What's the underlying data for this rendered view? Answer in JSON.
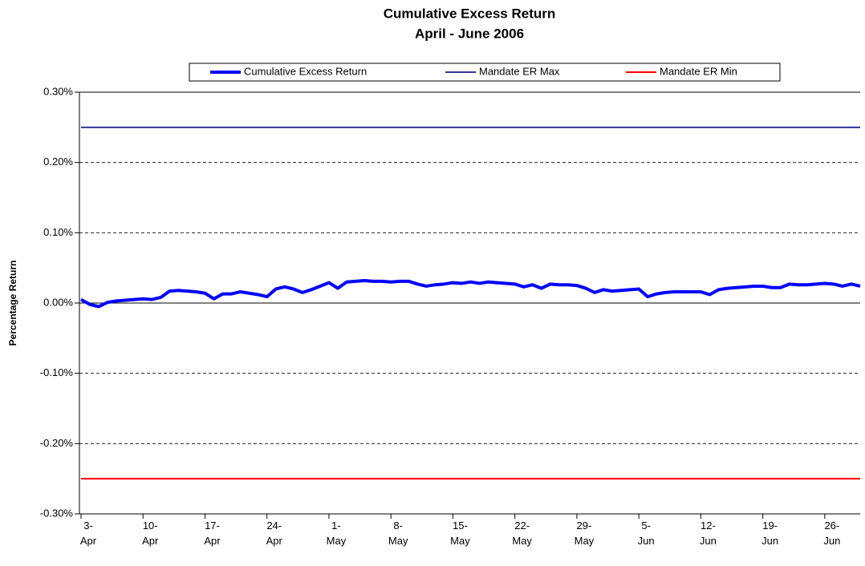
{
  "chart_data": {
    "type": "line",
    "title": "Cumulative Excess Return",
    "subtitle": "April - June 2006",
    "ylabel": "Percentage Return",
    "categories": [
      "3-Apr",
      null,
      null,
      null,
      null,
      null,
      null,
      "10-Apr",
      null,
      null,
      null,
      null,
      null,
      null,
      "17-Apr",
      null,
      null,
      null,
      null,
      null,
      null,
      "24-Apr",
      null,
      null,
      null,
      null,
      null,
      null,
      "1-May",
      null,
      null,
      null,
      null,
      null,
      null,
      "8-May",
      null,
      null,
      null,
      null,
      null,
      null,
      "15-May",
      null,
      null,
      null,
      null,
      null,
      null,
      "22-May",
      null,
      null,
      null,
      null,
      null,
      null,
      "29-May",
      null,
      null,
      null,
      null,
      null,
      null,
      "5-Jun",
      null,
      null,
      null,
      null,
      null,
      null,
      "12-Jun",
      null,
      null,
      null,
      null,
      null,
      null,
      "19-Jun",
      null,
      null,
      null,
      null,
      null,
      null,
      "26-Jun",
      null,
      null,
      null,
      null
    ],
    "series": [
      {
        "name": "Cumulative Excess Return",
        "color": "#0000ff",
        "width": 4,
        "values": [
          0.005,
          -0.002,
          -0.005,
          0.001,
          0.003,
          0.004,
          0.005,
          0.006,
          0.005,
          0.008,
          0.017,
          0.018,
          0.017,
          0.016,
          0.014,
          0.006,
          0.013,
          0.013,
          0.016,
          0.014,
          0.012,
          0.009,
          0.02,
          0.023,
          0.02,
          0.015,
          0.019,
          0.024,
          0.029,
          0.021,
          0.03,
          0.031,
          0.032,
          0.031,
          0.031,
          0.03,
          0.031,
          0.031,
          0.027,
          0.024,
          0.026,
          0.027,
          0.029,
          0.028,
          0.03,
          0.028,
          0.03,
          0.029,
          0.028,
          0.027,
          0.023,
          0.026,
          0.021,
          0.027,
          0.026,
          0.026,
          0.025,
          0.021,
          0.015,
          0.019,
          0.017,
          0.018,
          0.019,
          0.02,
          0.009,
          0.013,
          0.015,
          0.016,
          0.016,
          0.016,
          0.016,
          0.012,
          0.019,
          0.021,
          0.022,
          0.023,
          0.024,
          0.024,
          0.022,
          0.022,
          0.027,
          0.026,
          0.026,
          0.027,
          0.028,
          0.027,
          0.024,
          0.027,
          0.024
        ]
      },
      {
        "name": "Mandate ER Max",
        "color": "#333399",
        "width": 2,
        "values": [
          0.25,
          0.25,
          0.25,
          0.25,
          0.25,
          0.25,
          0.25,
          0.25,
          0.25,
          0.25,
          0.25,
          0.25,
          0.25,
          0.25,
          0.25,
          0.25,
          0.25,
          0.25,
          0.25,
          0.25,
          0.25,
          0.25,
          0.25,
          0.25,
          0.25,
          0.25,
          0.25,
          0.25,
          0.25,
          0.25,
          0.25,
          0.25,
          0.25,
          0.25,
          0.25,
          0.25,
          0.25,
          0.25,
          0.25,
          0.25,
          0.25,
          0.25,
          0.25,
          0.25,
          0.25,
          0.25,
          0.25,
          0.25,
          0.25,
          0.25,
          0.25,
          0.25,
          0.25,
          0.25,
          0.25,
          0.25,
          0.25,
          0.25,
          0.25,
          0.25,
          0.25,
          0.25,
          0.25,
          0.25,
          0.25,
          0.25,
          0.25,
          0.25,
          0.25,
          0.25,
          0.25,
          0.25,
          0.25,
          0.25,
          0.25,
          0.25,
          0.25,
          0.25,
          0.25,
          0.25,
          0.25,
          0.25,
          0.25,
          0.25,
          0.25,
          0.25,
          0.25,
          0.25,
          0.25
        ]
      },
      {
        "name": "Mandate ER Min",
        "color": "#ff0000",
        "width": 2,
        "values": [
          -0.25,
          -0.25,
          -0.25,
          -0.25,
          -0.25,
          -0.25,
          -0.25,
          -0.25,
          -0.25,
          -0.25,
          -0.25,
          -0.25,
          -0.25,
          -0.25,
          -0.25,
          -0.25,
          -0.25,
          -0.25,
          -0.25,
          -0.25,
          -0.25,
          -0.25,
          -0.25,
          -0.25,
          -0.25,
          -0.25,
          -0.25,
          -0.25,
          -0.25,
          -0.25,
          -0.25,
          -0.25,
          -0.25,
          -0.25,
          -0.25,
          -0.25,
          -0.25,
          -0.25,
          -0.25,
          -0.25,
          -0.25,
          -0.25,
          -0.25,
          -0.25,
          -0.25,
          -0.25,
          -0.25,
          -0.25,
          -0.25,
          -0.25,
          -0.25,
          -0.25,
          -0.25,
          -0.25,
          -0.25,
          -0.25,
          -0.25,
          -0.25,
          -0.25,
          -0.25,
          -0.25,
          -0.25,
          -0.25,
          -0.25,
          -0.25,
          -0.25,
          -0.25,
          -0.25,
          -0.25,
          -0.25,
          -0.25,
          -0.25,
          -0.25,
          -0.25,
          -0.25,
          -0.25,
          -0.25,
          -0.25,
          -0.25,
          -0.25,
          -0.25,
          -0.25,
          -0.25,
          -0.25,
          -0.25,
          -0.25,
          -0.25,
          -0.25,
          -0.25
        ]
      }
    ],
    "ylim": [
      -0.3,
      0.3
    ],
    "yticks": [
      {
        "value": -0.3,
        "label": "-0.30%"
      },
      {
        "value": -0.2,
        "label": "-0.20%"
      },
      {
        "value": -0.1,
        "label": "-0.10%"
      },
      {
        "value": 0,
        "label": "0.00%"
      },
      {
        "value": 0.1,
        "label": "0.10%"
      },
      {
        "value": 0.2,
        "label": "0.20%"
      },
      {
        "value": 0.3,
        "label": "0.30%"
      }
    ],
    "grid": true,
    "legend": "top"
  }
}
